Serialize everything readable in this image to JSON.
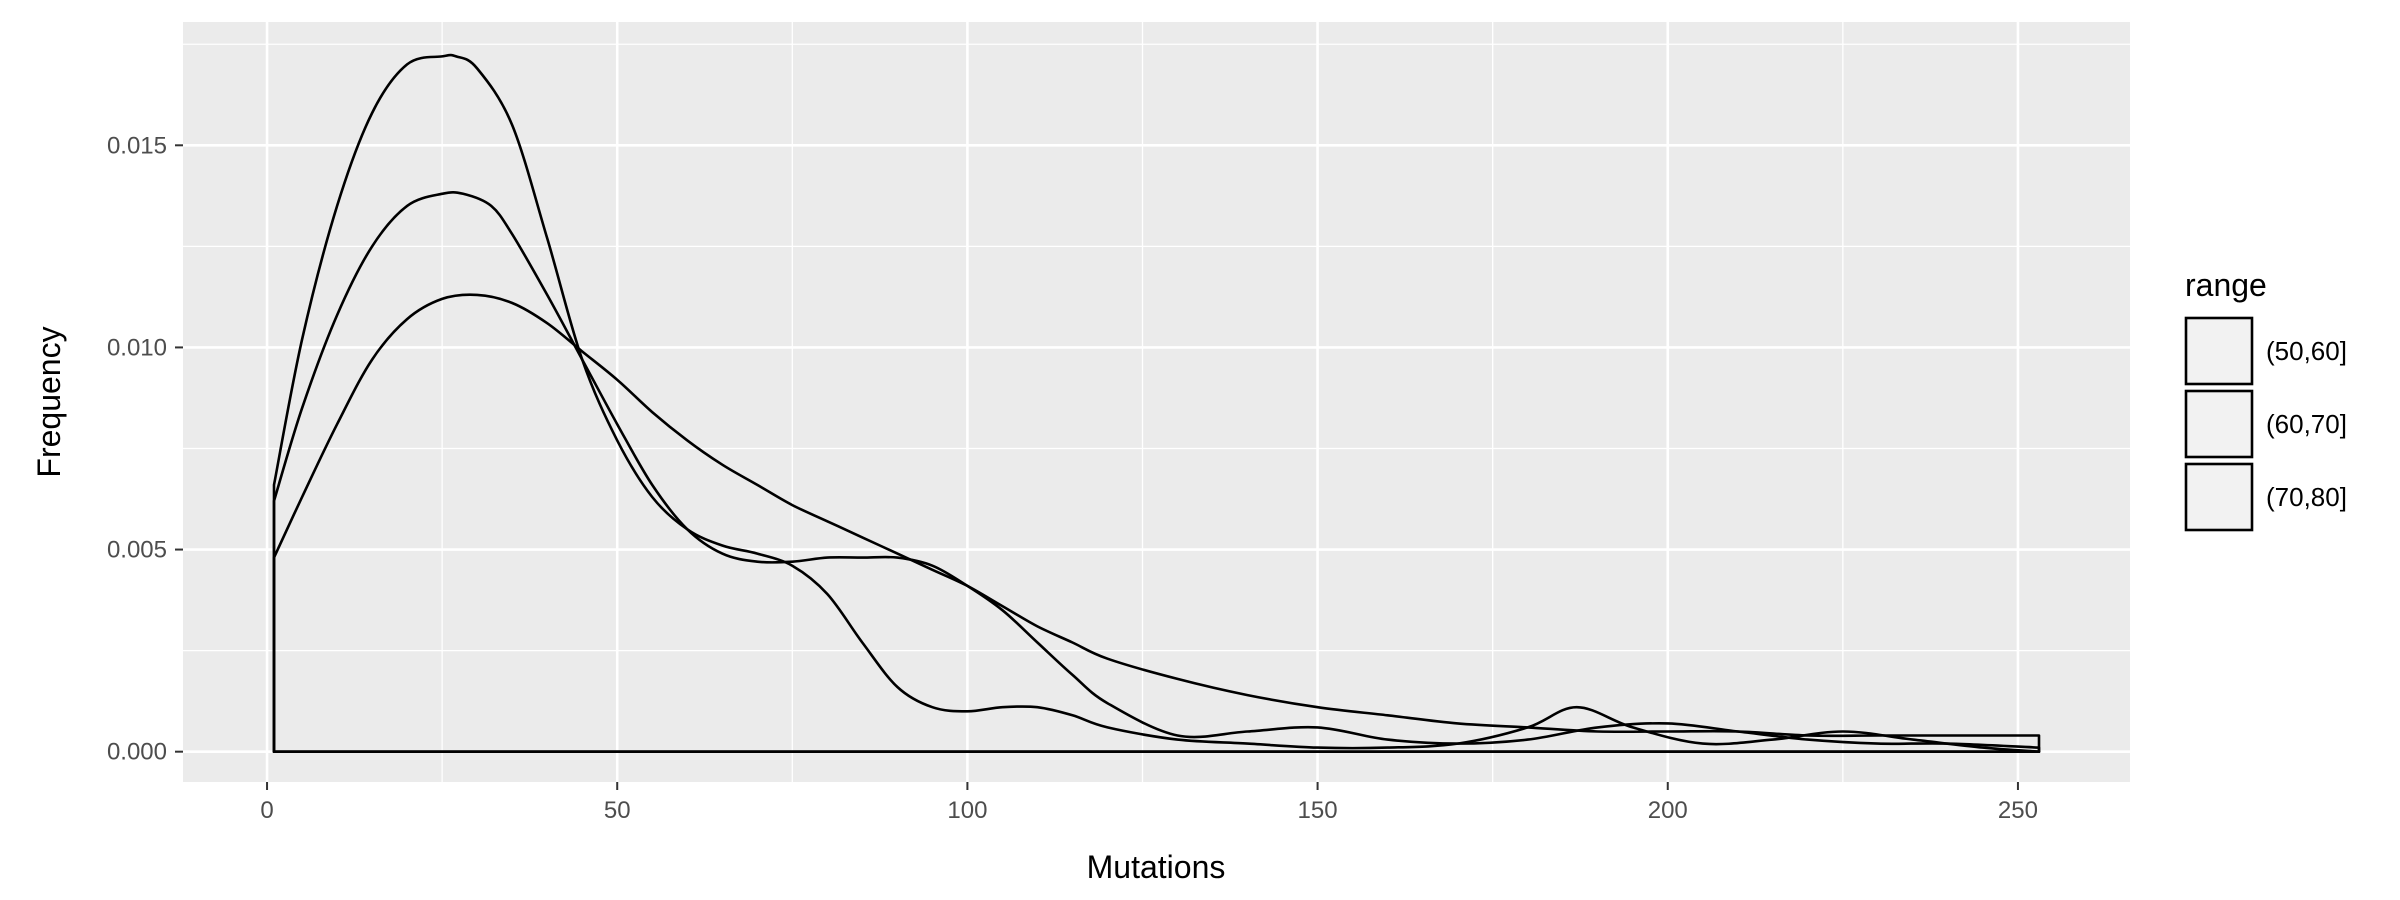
{
  "chart_data": {
    "type": "area",
    "subtype": "density",
    "title": "",
    "xlabel": "Mutations",
    "ylabel": "Frequency",
    "xlim": [
      -12,
      266
    ],
    "ylim": [
      -0.00075,
      0.01805
    ],
    "x_ticks": [
      0,
      50,
      100,
      150,
      200,
      250
    ],
    "x_tick_labels": [
      "0",
      "50",
      "100",
      "150",
      "200",
      "250"
    ],
    "y_ticks": [
      0.0,
      0.005,
      0.01,
      0.015
    ],
    "y_tick_labels": [
      "0.000",
      "0.005",
      "0.010",
      "0.015"
    ],
    "grid": true,
    "legend": {
      "title": "range",
      "position": "right",
      "entries": [
        "(50,60]",
        "(60,70]",
        "(70,80]"
      ]
    },
    "colors": {
      "panel": "#ebebeb",
      "grid": "#ffffff",
      "line": "#000000",
      "fill": "#f2f2f2"
    },
    "series": [
      {
        "name": "(50,60]",
        "x": [
          1,
          5,
          10,
          15,
          20,
          25,
          27,
          30,
          35,
          40,
          45,
          50,
          55,
          60,
          65,
          70,
          75,
          80,
          85,
          90,
          95,
          100,
          105,
          110,
          115,
          120,
          130,
          140,
          150,
          160,
          170,
          180,
          187,
          195,
          205,
          215,
          225,
          235,
          245,
          253
        ],
        "y": [
          0.0066,
          0.0102,
          0.0135,
          0.0158,
          0.017,
          0.0172,
          0.0172,
          0.0169,
          0.0155,
          0.0127,
          0.0097,
          0.0077,
          0.0063,
          0.0055,
          0.0051,
          0.0049,
          0.0046,
          0.0039,
          0.0027,
          0.0016,
          0.0011,
          0.001,
          0.0011,
          0.0011,
          0.0009,
          0.0006,
          0.0003,
          0.0002,
          0.0001,
          0.0001,
          0.0002,
          0.0006,
          0.0011,
          0.0006,
          0.0002,
          0.0003,
          0.0005,
          0.0003,
          0.0001,
          0.0
        ]
      },
      {
        "name": "(60,70]",
        "x": [
          1,
          5,
          10,
          15,
          20,
          25,
          28,
          32,
          35,
          40,
          45,
          50,
          55,
          60,
          65,
          70,
          75,
          80,
          85,
          90,
          95,
          100,
          105,
          110,
          115,
          120,
          130,
          140,
          150,
          160,
          170,
          180,
          190,
          200,
          210,
          220,
          230,
          240,
          253
        ],
        "y": [
          0.0062,
          0.0085,
          0.0108,
          0.0125,
          0.0135,
          0.0138,
          0.0138,
          0.0135,
          0.0128,
          0.0113,
          0.0097,
          0.0081,
          0.0066,
          0.0055,
          0.0049,
          0.0047,
          0.0047,
          0.0048,
          0.0048,
          0.0048,
          0.0046,
          0.0041,
          0.0035,
          0.0027,
          0.0019,
          0.0012,
          0.0004,
          0.0005,
          0.0006,
          0.0003,
          0.0002,
          0.0003,
          0.0006,
          0.0007,
          0.0005,
          0.0003,
          0.0002,
          0.0002,
          0.0001
        ]
      },
      {
        "name": "(70,80]",
        "x": [
          1,
          5,
          10,
          15,
          20,
          25,
          30,
          35,
          40,
          45,
          50,
          55,
          60,
          65,
          70,
          75,
          80,
          85,
          90,
          95,
          100,
          105,
          110,
          115,
          120,
          130,
          140,
          150,
          160,
          170,
          180,
          190,
          200,
          210,
          220,
          230,
          240,
          253
        ],
        "y": [
          0.0048,
          0.0063,
          0.0081,
          0.0097,
          0.0107,
          0.0112,
          0.0113,
          0.0111,
          0.0106,
          0.0099,
          0.0092,
          0.0084,
          0.0077,
          0.0071,
          0.0066,
          0.0061,
          0.0057,
          0.0053,
          0.0049,
          0.0045,
          0.0041,
          0.0036,
          0.0031,
          0.0027,
          0.0023,
          0.0018,
          0.0014,
          0.0011,
          0.0009,
          0.0007,
          0.0006,
          0.0005,
          0.0005,
          0.0005,
          0.0004,
          0.0004,
          0.0004,
          0.0004
        ]
      }
    ]
  }
}
